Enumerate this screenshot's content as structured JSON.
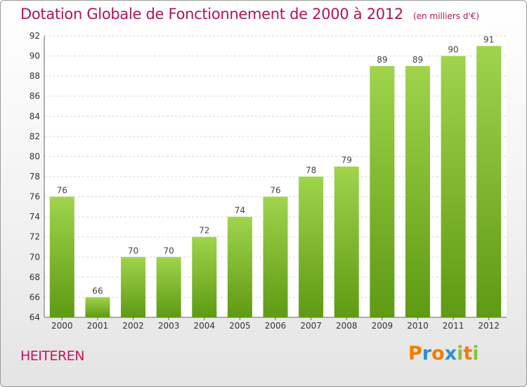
{
  "chart_data": {
    "type": "bar",
    "title": "Dotation Globale de Fonctionnement de 2000 à 2012",
    "subtitle": "(en milliers d'€)",
    "categories": [
      "2000",
      "2001",
      "2002",
      "2003",
      "2004",
      "2005",
      "2006",
      "2007",
      "2008",
      "2009",
      "2010",
      "2011",
      "2012"
    ],
    "values": [
      76,
      66,
      70,
      70,
      72,
      74,
      76,
      78,
      79,
      89,
      89,
      90,
      91
    ],
    "ylim": [
      64,
      92
    ],
    "yticks": [
      64,
      66,
      68,
      70,
      72,
      74,
      76,
      78,
      80,
      82,
      84,
      86,
      88,
      90,
      92
    ],
    "grid": true,
    "bar_color": "#7cb82a"
  },
  "footer": {
    "place": "HEITEREN",
    "logo": [
      "P",
      "r",
      "o",
      "x",
      "i",
      "t",
      "i"
    ],
    "logo_colors": [
      "#f07d00",
      "#2e8fd1",
      "#f07d00",
      "#2e8fd1",
      "#8ac03a",
      "#f07d00",
      "#8ac03a"
    ]
  }
}
